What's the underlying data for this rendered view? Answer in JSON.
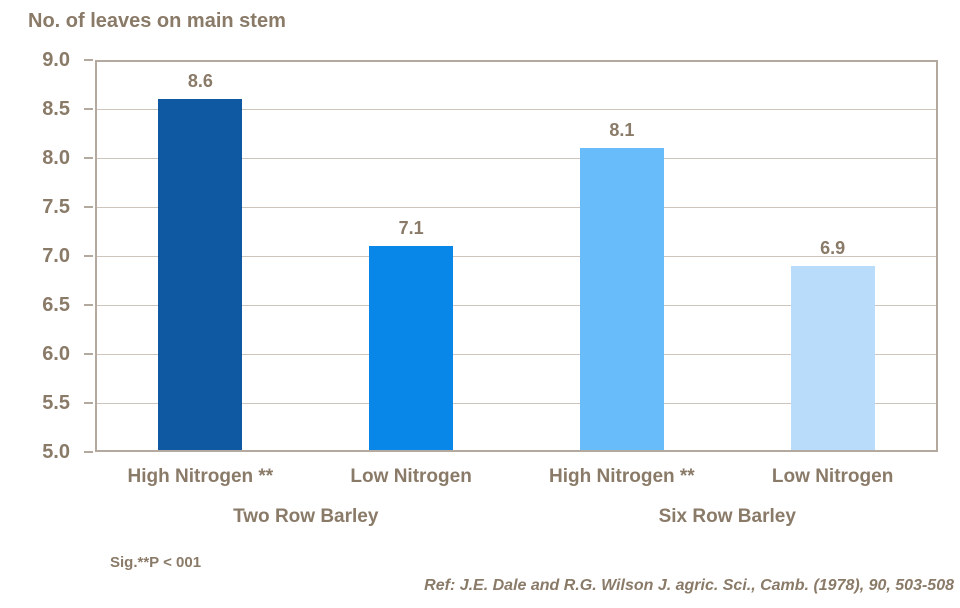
{
  "title": "No. of leaves on main stem",
  "footnote": "Sig.**P < 001",
  "reference": "Ref: J.E. Dale and R.G. Wilson J. agric. Sci., Camb. (1978), 90, 503-508",
  "colors": {
    "text": "#8a7a68",
    "plot_border": "#b3a99e",
    "gridline": "#cdc5bb",
    "background": "#ffffff",
    "bar_colors": [
      "#0f59a2",
      "#0887e8",
      "#69bcfa",
      "#b9dcfb"
    ]
  },
  "chart_data": {
    "type": "bar",
    "title": "No. of leaves on main stem",
    "categories": [
      "High Nitrogen **",
      "Low Nitrogen",
      "High Nitrogen **",
      "Low Nitrogen"
    ],
    "values": [
      8.6,
      7.1,
      8.1,
      6.9
    ],
    "data_labels": [
      "8.6",
      "7.1",
      "8.1",
      "6.9"
    ],
    "groups": [
      {
        "label": "Two Row Barley",
        "span": [
          0,
          1
        ]
      },
      {
        "label": "Six Row Barley",
        "span": [
          2,
          3
        ]
      }
    ],
    "xlabel": "",
    "ylabel": "No. of leaves on main stem",
    "ylim": [
      5.0,
      9.0
    ],
    "ytick_step": 0.5,
    "ytick_labels": [
      "5.0",
      "5.5",
      "6.0",
      "6.5",
      "7.0",
      "7.5",
      "8.0",
      "8.5",
      "9.0"
    ],
    "grid": true,
    "legend_position": "none"
  }
}
